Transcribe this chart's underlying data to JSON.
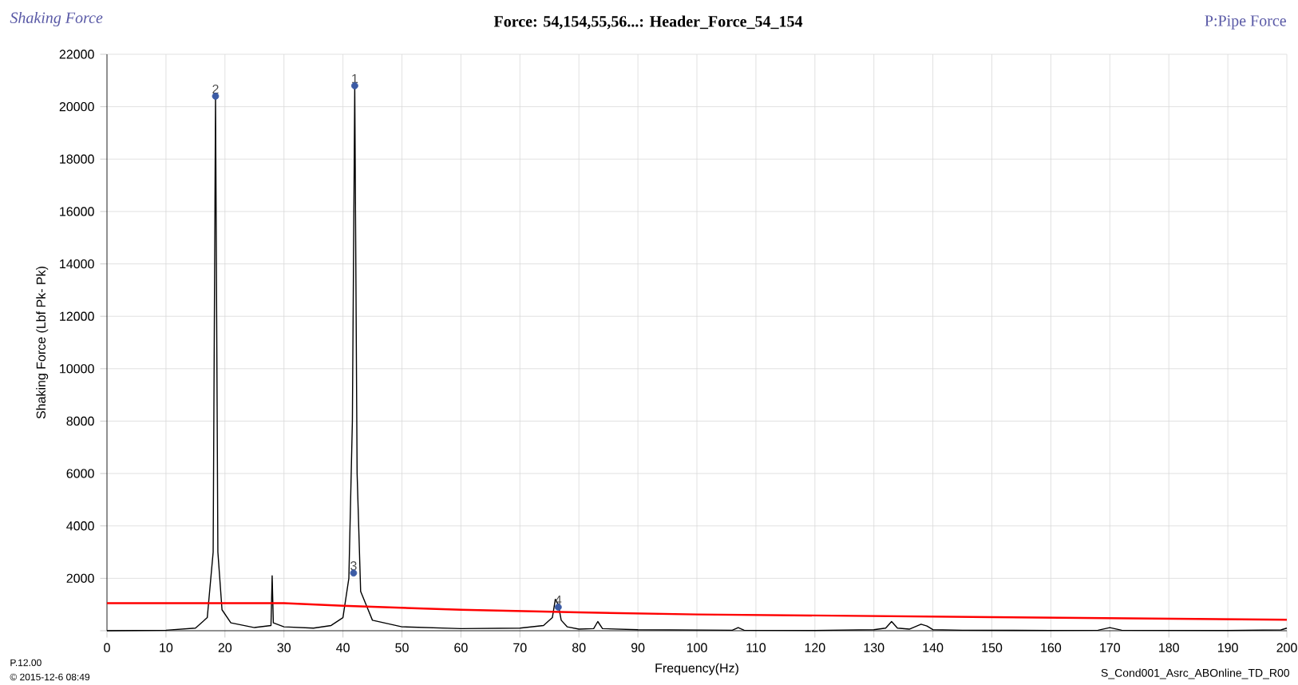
{
  "chart_data": {
    "type": "line",
    "title": "Force: 54,154,55,56...: Header_Force_54_154",
    "xlabel": "Frequency(Hz)",
    "ylabel": "Shaking Force (Lbf Pk- Pk)",
    "xlim": [
      0,
      200
    ],
    "ylim": [
      0,
      22000
    ],
    "xticks": [
      0,
      10,
      20,
      30,
      40,
      50,
      60,
      70,
      80,
      90,
      100,
      110,
      120,
      130,
      140,
      150,
      160,
      170,
      180,
      190,
      200
    ],
    "yticks": [
      {
        "value": 0,
        "label": null
      },
      2000,
      4000,
      6000,
      8000,
      10000,
      12000,
      14000,
      16000,
      18000,
      20000,
      22000
    ],
    "grid": true,
    "line_style": "solid",
    "series": [
      {
        "color": "#000000",
        "x": [
          0,
          10,
          15,
          17,
          18,
          18.4,
          18.8,
          19.5,
          21,
          25,
          27.8,
          28,
          28.2,
          30,
          35,
          38,
          40,
          41,
          41.6,
          42,
          42.4,
          43,
          45,
          50,
          60,
          70,
          74,
          75.5,
          76,
          76.5,
          77,
          78,
          80,
          82.5,
          83.2,
          84,
          90,
          106,
          107,
          108,
          120,
          130,
          132,
          133,
          134,
          136,
          138,
          139,
          140,
          145,
          160,
          168,
          170,
          172,
          190,
          199,
          200
        ],
        "values": [
          0,
          20,
          100,
          500,
          3000,
          20400,
          3000,
          800,
          300,
          120,
          200,
          2100,
          300,
          150,
          100,
          200,
          500,
          2000,
          8000,
          20800,
          6000,
          1500,
          400,
          150,
          80,
          100,
          200,
          500,
          1200,
          1000,
          400,
          150,
          60,
          80,
          350,
          80,
          40,
          20,
          120,
          20,
          10,
          40,
          100,
          350,
          100,
          60,
          250,
          180,
          40,
          20,
          10,
          20,
          120,
          20,
          10,
          30,
          100
        ]
      },
      {
        "color": "#ff0000",
        "x": [
          0,
          30,
          40,
          60,
          80,
          100,
          150,
          200
        ],
        "values": [
          1050,
          1050,
          950,
          800,
          700,
          620,
          520,
          420
        ]
      },
      {
        "type": "scatter",
        "color": "#3b5ba5",
        "x": [
          42,
          18.4,
          41.8,
          76.5
        ],
        "values": [
          20800,
          20400,
          2200,
          900
        ]
      }
    ],
    "annotations": [
      "Shaking Force",
      "P:Pipe Force",
      "P.12.00",
      "© 2015-12-6 08:49",
      "S_Cond001_Asrc_ABOnline_TD_R00",
      {
        "text": "1",
        "x": 42,
        "y": 20800
      },
      {
        "text": "2",
        "x": 18.4,
        "y": 20400
      },
      {
        "text": "3",
        "x": 41.8,
        "y": 2200
      },
      {
        "text": "4",
        "x": 76.5,
        "y": 900
      }
    ]
  }
}
